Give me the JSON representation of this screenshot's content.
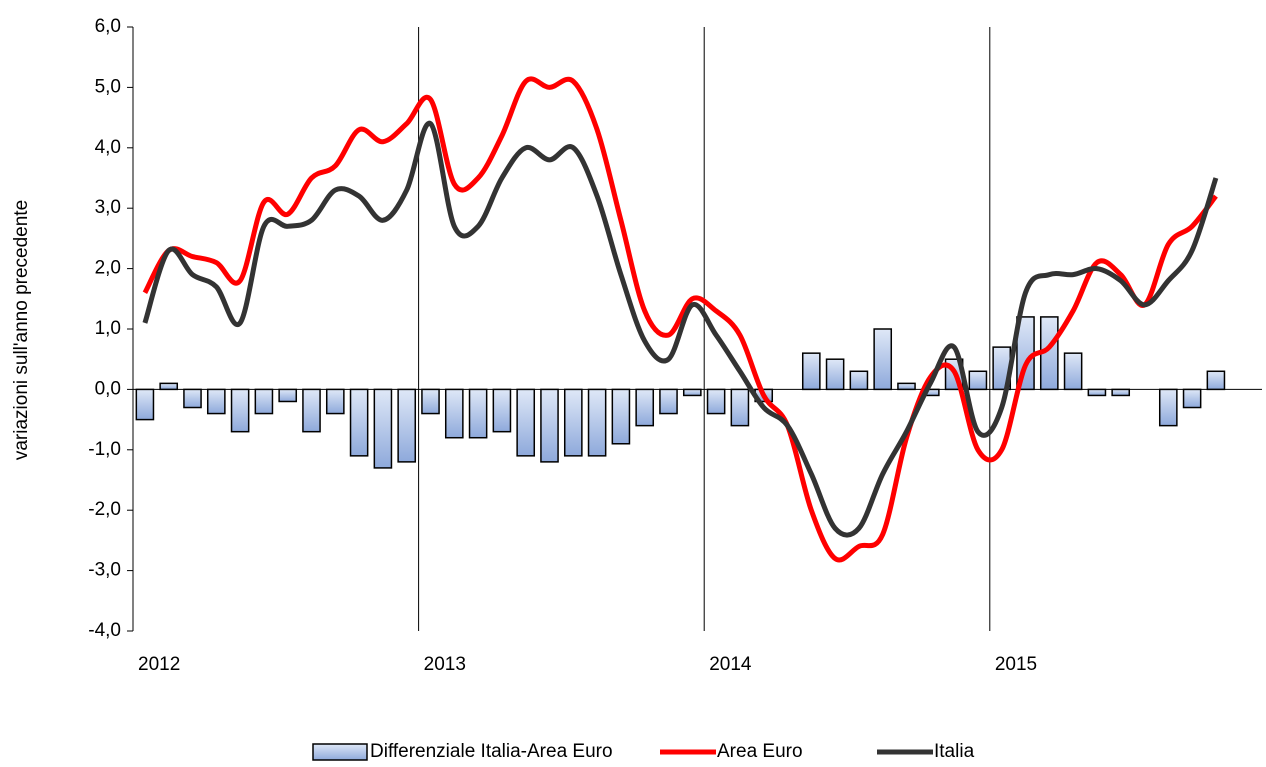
{
  "chart_data": {
    "type": "bar_line",
    "y_label": "variazioni sull'anno precedente",
    "categories": [
      "2012",
      null,
      null,
      null,
      null,
      null,
      null,
      null,
      null,
      null,
      null,
      null,
      "2013",
      null,
      null,
      null,
      null,
      null,
      null,
      null,
      null,
      null,
      null,
      null,
      "2014",
      null,
      null,
      null,
      null,
      null,
      null,
      null,
      null,
      null,
      null,
      null,
      "2015",
      null,
      null,
      null,
      null,
      null,
      null,
      null,
      null,
      null
    ],
    "ylim": [
      -4,
      6
    ],
    "yticks": [
      {
        "value": -4,
        "label": "-4,0"
      },
      {
        "value": -3,
        "label": "-3,0"
      },
      {
        "value": -2,
        "label": "-2,0"
      },
      {
        "value": -1,
        "label": "-1,0"
      },
      {
        "value": 0,
        "label": "0,0"
      },
      {
        "value": 1,
        "label": "1,0"
      },
      {
        "value": 2,
        "label": "2,0"
      },
      {
        "value": 3,
        "label": "3,0"
      },
      {
        "value": 4,
        "label": "4,0"
      },
      {
        "value": 5,
        "label": "5,0"
      },
      {
        "value": 6,
        "label": "6,0"
      }
    ],
    "series": [
      {
        "name": "Differenziale Italia-Area Euro",
        "kind": "bar",
        "color": "#8ea9db",
        "values": [
          -0.5,
          0.1,
          -0.3,
          -0.4,
          -0.7,
          -0.4,
          -0.2,
          -0.7,
          -0.4,
          -1.1,
          -1.3,
          -1.2,
          -0.4,
          -0.8,
          -0.8,
          -0.7,
          -1.1,
          -1.2,
          -1.1,
          -1.1,
          -0.9,
          -0.6,
          -0.4,
          -0.1,
          -0.4,
          -0.6,
          -0.2,
          0,
          0.6,
          0.5,
          0.3,
          1.0,
          0.1,
          -0.1,
          0.5,
          0.3,
          0.7,
          1.2,
          1.2,
          0.6,
          -0.1,
          -0.1,
          0,
          -0.6,
          -0.3,
          0.3
        ]
      },
      {
        "name": "Area Euro",
        "kind": "line",
        "color": "#ff0000",
        "values": [
          1.6,
          2.3,
          2.2,
          2.1,
          1.8,
          3.1,
          2.9,
          3.5,
          3.7,
          4.3,
          4.1,
          4.4,
          4.8,
          3.4,
          3.5,
          4.2,
          5.1,
          5.0,
          5.1,
          4.3,
          2.8,
          1.3,
          0.9,
          1.5,
          1.3,
          0.9,
          -0.1,
          -0.6,
          -2.0,
          -2.8,
          -2.6,
          -2.4,
          -0.8,
          0.2,
          0.3,
          -1.0,
          -1.0,
          0.4,
          0.7,
          1.3,
          2.1,
          1.9,
          1.4,
          2.4,
          2.7,
          3.2
        ]
      },
      {
        "name": "Italia",
        "kind": "line",
        "color": "#333333",
        "values": [
          1.1,
          2.3,
          1.9,
          1.7,
          1.1,
          2.7,
          2.7,
          2.8,
          3.3,
          3.2,
          2.8,
          3.3,
          4.4,
          2.7,
          2.7,
          3.5,
          4.0,
          3.8,
          4.0,
          3.2,
          1.9,
          0.8,
          0.5,
          1.4,
          0.9,
          0.3,
          -0.3,
          -0.6,
          -1.4,
          -2.3,
          -2.3,
          -1.4,
          -0.7,
          0.1,
          0.7,
          -0.7,
          -0.3,
          1.6,
          1.9,
          1.9,
          2.0,
          1.8,
          1.4,
          1.8,
          2.3,
          3.5
        ]
      }
    ]
  }
}
